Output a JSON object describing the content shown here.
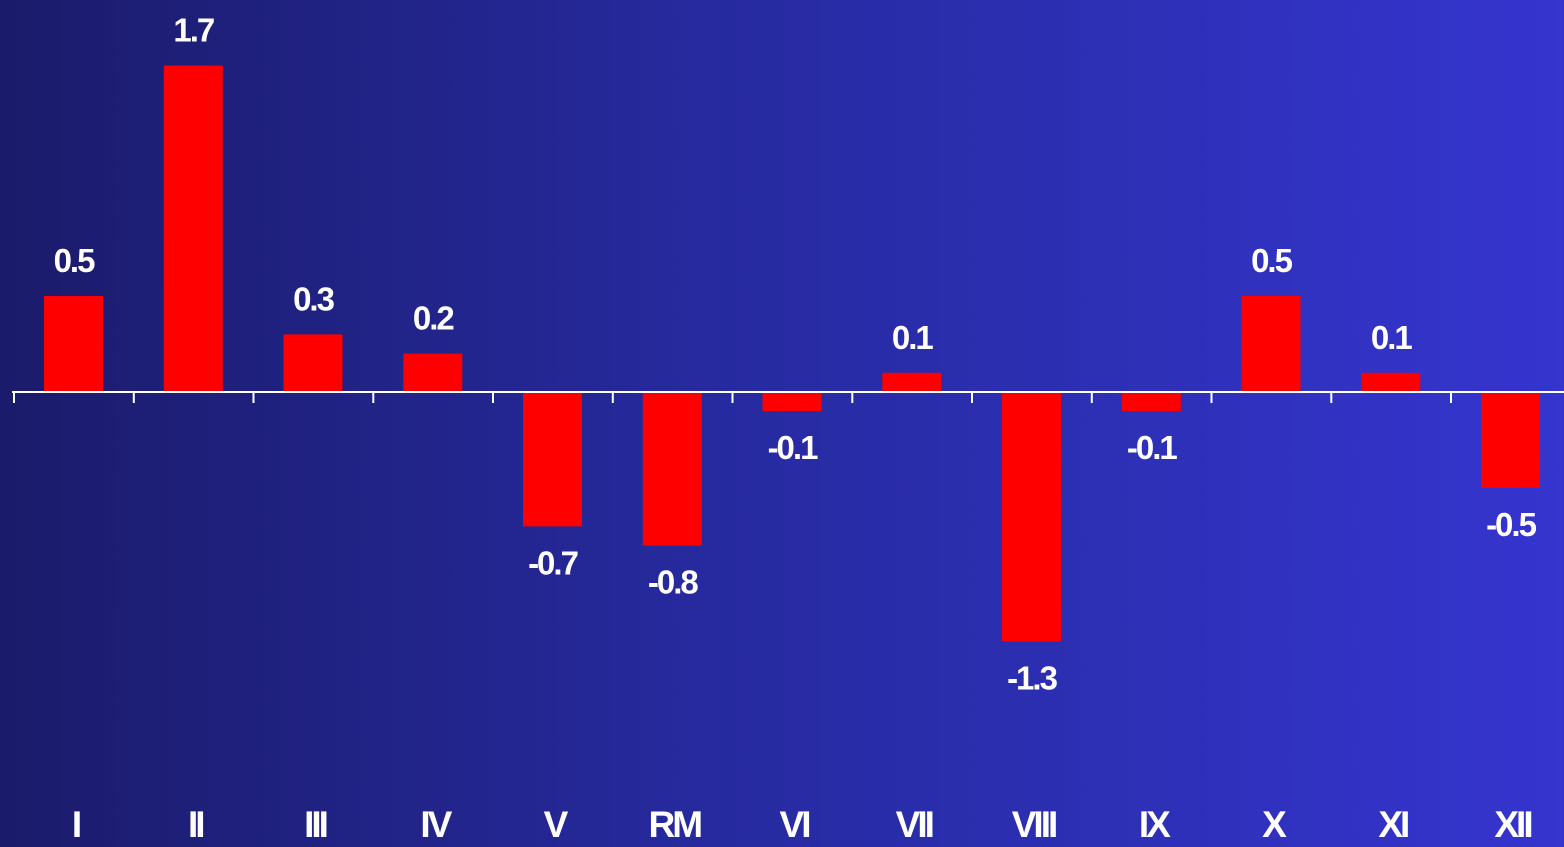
{
  "chart_data": {
    "type": "bar",
    "categories": [
      "I",
      "II",
      "III",
      "IV",
      "V",
      "RM",
      "VI",
      "VII",
      "VIII",
      "IX",
      "X",
      "XI",
      "XII"
    ],
    "values": [
      0.5,
      1.7,
      0.3,
      0.2,
      -0.7,
      -0.8,
      -0.1,
      0.1,
      -1.3,
      -0.1,
      0.5,
      0.1,
      -0.5
    ],
    "value_labels": [
      "0.5",
      "1.7",
      "0.3",
      "0.2",
      "-0.7",
      "-0.8",
      "-0.1",
      "0.1",
      "-1.3",
      "-0.1",
      "0.5",
      "0.1",
      "-0.5"
    ],
    "title": "",
    "xlabel": "",
    "ylabel": "",
    "ylim": [
      -1.6,
      1.85
    ],
    "grid": false,
    "legend": "none",
    "colors": {
      "bar": "#ff0000",
      "axis": "#ffffff",
      "text": "#ffffff",
      "background_left": "#1b1b6b",
      "background_right": "#3535cf"
    }
  }
}
